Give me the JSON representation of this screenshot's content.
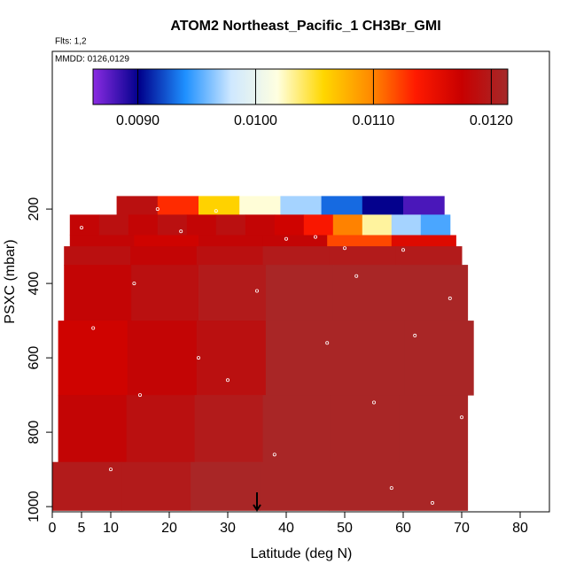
{
  "chart_data": {
    "type": "curtain",
    "title": "ATOM2 Northeast_Pacific_1 CH3Br_GMI",
    "flights": "Flts: 1,2",
    "dates": "MMDD: 0126,0129",
    "xlabel": "Latitude (deg N)",
    "ylabel": "PSXC (mbar)",
    "xlim": [
      0,
      85
    ],
    "xticks": [
      0,
      5,
      10,
      20,
      30,
      40,
      50,
      60,
      70,
      80
    ],
    "ylim": [
      -224,
      1014
    ],
    "yticks": [
      200,
      400,
      600,
      800,
      1000
    ],
    "colorbar_lim": [
      0.00862,
      0.01214
    ],
    "colorbar_ticks": [
      {
        "value": 0.009,
        "label": "0.0090"
      },
      {
        "value": 0.01,
        "label": "0.0100"
      },
      {
        "value": 0.011,
        "label": "0.0110"
      },
      {
        "value": 0.012,
        "label": "0.0120"
      }
    ],
    "colormap": [
      "#8a2be2",
      "#00008b",
      "#1e90ff",
      "#cfe8ff",
      "#ffffe0",
      "#ffd700",
      "#ff8c00",
      "#ff1a00",
      "#c80000",
      "#a52a2a"
    ],
    "rows": [
      {
        "p": [
          165,
          215
        ],
        "lat": [
          11,
          67
        ],
        "values": [
          0.0119,
          0.0113,
          0.0106,
          0.0102,
          0.0097,
          0.0093,
          0.009,
          0.0088
        ]
      },
      {
        "p": [
          215,
          270
        ],
        "lat": [
          3,
          68
        ],
        "values": [
          0.0118,
          0.0119,
          0.0118,
          0.0119,
          0.0118,
          0.0119,
          0.0118,
          0.0117,
          0.0114,
          0.011,
          0.0103,
          0.0097,
          0.0095
        ]
      },
      {
        "p": [
          270,
          300
        ],
        "lat": [
          3,
          69
        ],
        "values": [
          0.0118,
          0.0117,
          0.0118,
          0.0118,
          0.0112,
          0.0116
        ]
      },
      {
        "p": [
          300,
          350
        ],
        "lat": [
          2,
          70
        ],
        "values": [
          0.0119,
          0.0118,
          0.0119,
          0.012,
          0.012,
          0.012
        ]
      },
      {
        "p": [
          350,
          500
        ],
        "lat": [
          2,
          71
        ],
        "values": [
          0.0118,
          0.0119,
          0.012,
          0.0121,
          0.0121,
          0.0121
        ]
      },
      {
        "p": [
          500,
          700
        ],
        "lat": [
          1,
          72
        ],
        "values": [
          0.0117,
          0.0118,
          0.0119,
          0.0121,
          0.0121,
          0.0121
        ]
      },
      {
        "p": [
          700,
          880
        ],
        "lat": [
          1,
          71
        ],
        "values": [
          0.0118,
          0.0119,
          0.012,
          0.0121,
          0.0121,
          0.0121
        ]
      },
      {
        "p": [
          880,
          1010
        ],
        "lat": [
          0,
          71
        ],
        "values": [
          0.012,
          0.012,
          0.0121,
          0.0121,
          0.0121,
          0.0121
        ]
      }
    ],
    "observations": {
      "lat": [
        18,
        28,
        45,
        60,
        5,
        22,
        40,
        50,
        14,
        35,
        52,
        68,
        7,
        25,
        47,
        62,
        15,
        30,
        55,
        70,
        10,
        38,
        58,
        65
      ],
      "p": [
        200,
        205,
        275,
        310,
        250,
        260,
        280,
        305,
        400,
        420,
        380,
        440,
        520,
        600,
        560,
        540,
        700,
        660,
        720,
        760,
        900,
        860,
        950,
        990
      ]
    },
    "arrow_lat": 35
  }
}
